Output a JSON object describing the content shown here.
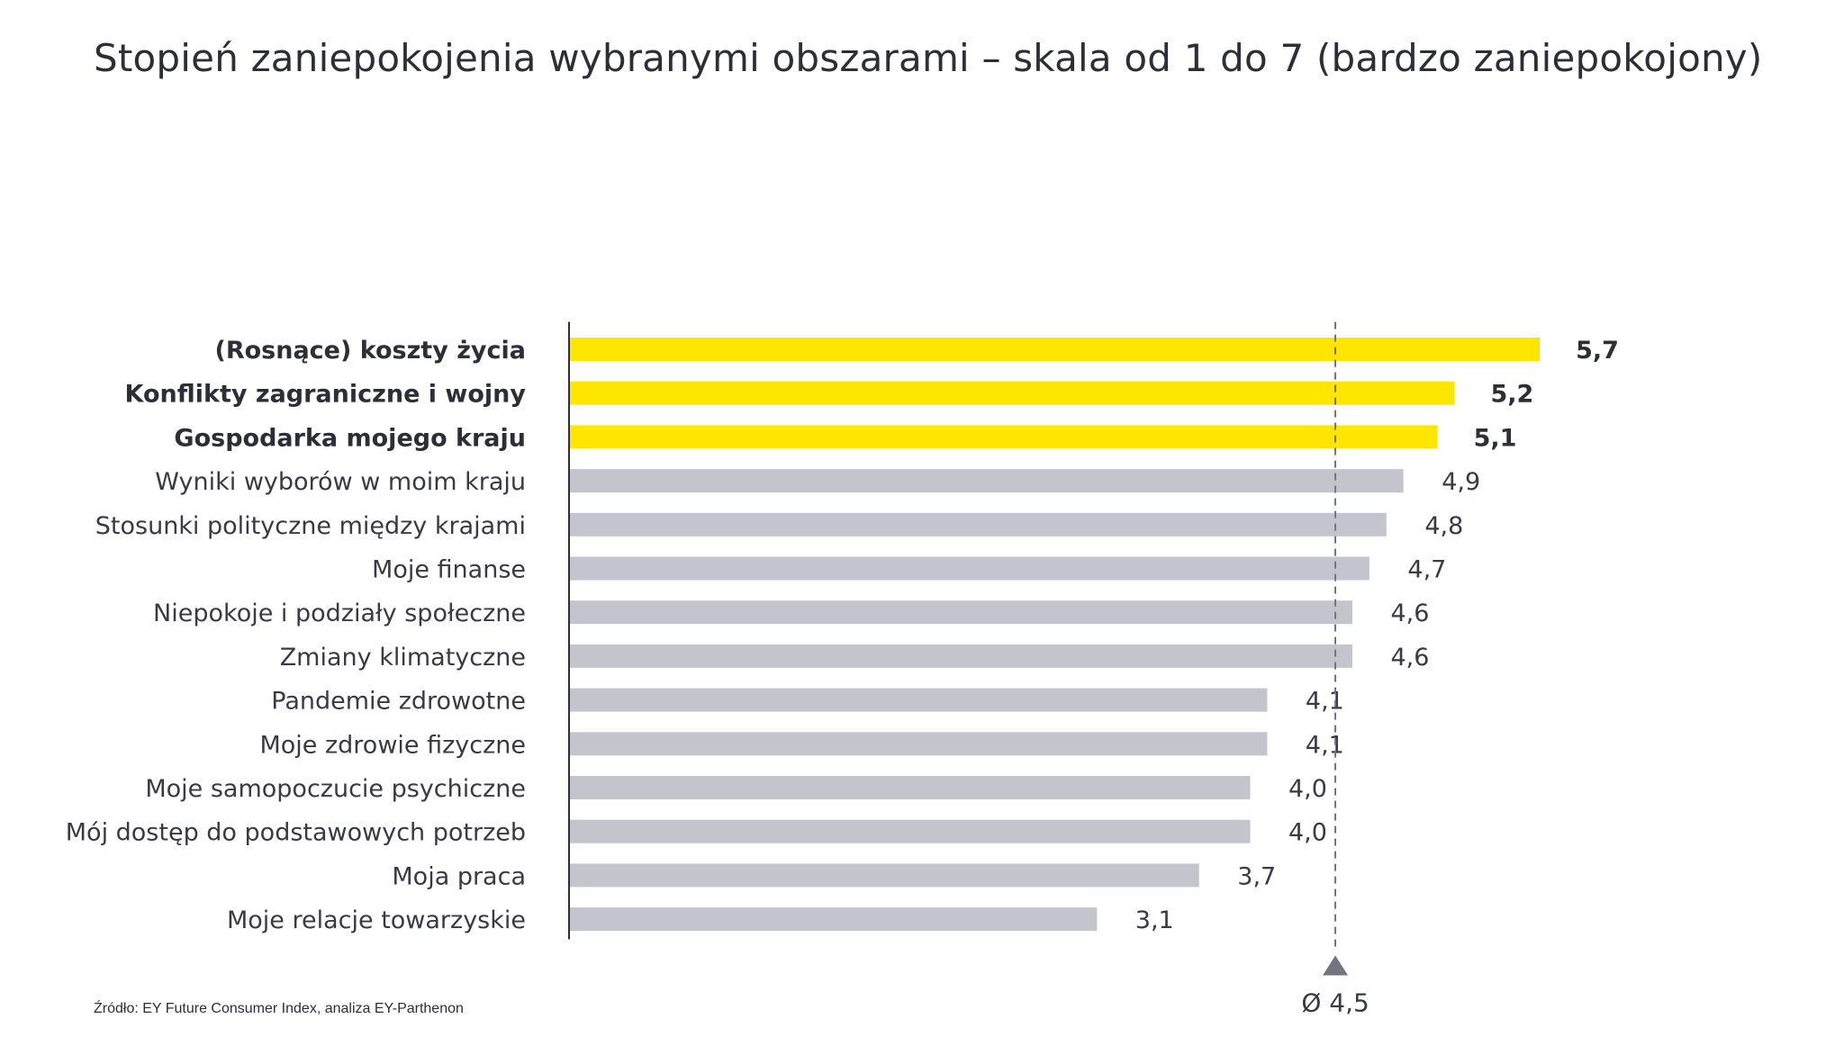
{
  "chart_data": {
    "type": "bar",
    "orientation": "horizontal",
    "title": "Stopień zaniepokojenia wybranymi obszarami – skala od 1 do 7 (bardzo zaniepokojony)",
    "categories": [
      "(Rosnące) koszty życia",
      "Konflikty zagraniczne i wojny",
      "Gospodarka mojego kraju",
      "Wyniki wyborów w moim kraju",
      "Stosunki polityczne między krajami",
      "Moje finanse",
      "Niepokoje i podziały społeczne",
      "Zmiany klimatyczne",
      "Pandemie zdrowotne",
      "Moje zdrowie fizyczne",
      "Moje samopoczucie psychiczne",
      "Mój dostęp do podstawowych potrzeb",
      "Moja praca",
      "Moje relacje towarzyskie"
    ],
    "values": [
      5.7,
      5.2,
      5.1,
      4.9,
      4.8,
      4.7,
      4.6,
      4.6,
      4.1,
      4.1,
      4.0,
      4.0,
      3.7,
      3.1
    ],
    "value_labels": [
      "5,7",
      "5,2",
      "5,1",
      "4,9",
      "4,8",
      "4,7",
      "4,6",
      "4,6",
      "4,1",
      "4,1",
      "4,0",
      "4,0",
      "3,7",
      "3,1"
    ],
    "highlighted_count": 3,
    "average": 4.5,
    "average_label": "Ø 4,5",
    "xlim": [
      0,
      5.7
    ],
    "xlabel": "",
    "ylabel": "",
    "grid": false,
    "colors": {
      "highlight": "#ffe600",
      "default": "#c4c4cd",
      "axis": "#2e2e38",
      "average_line": "#747480",
      "average_marker": "#747480"
    }
  },
  "footer": {
    "source": "Źródło: EY Future Consumer Index, analiza EY-Parthenon"
  }
}
